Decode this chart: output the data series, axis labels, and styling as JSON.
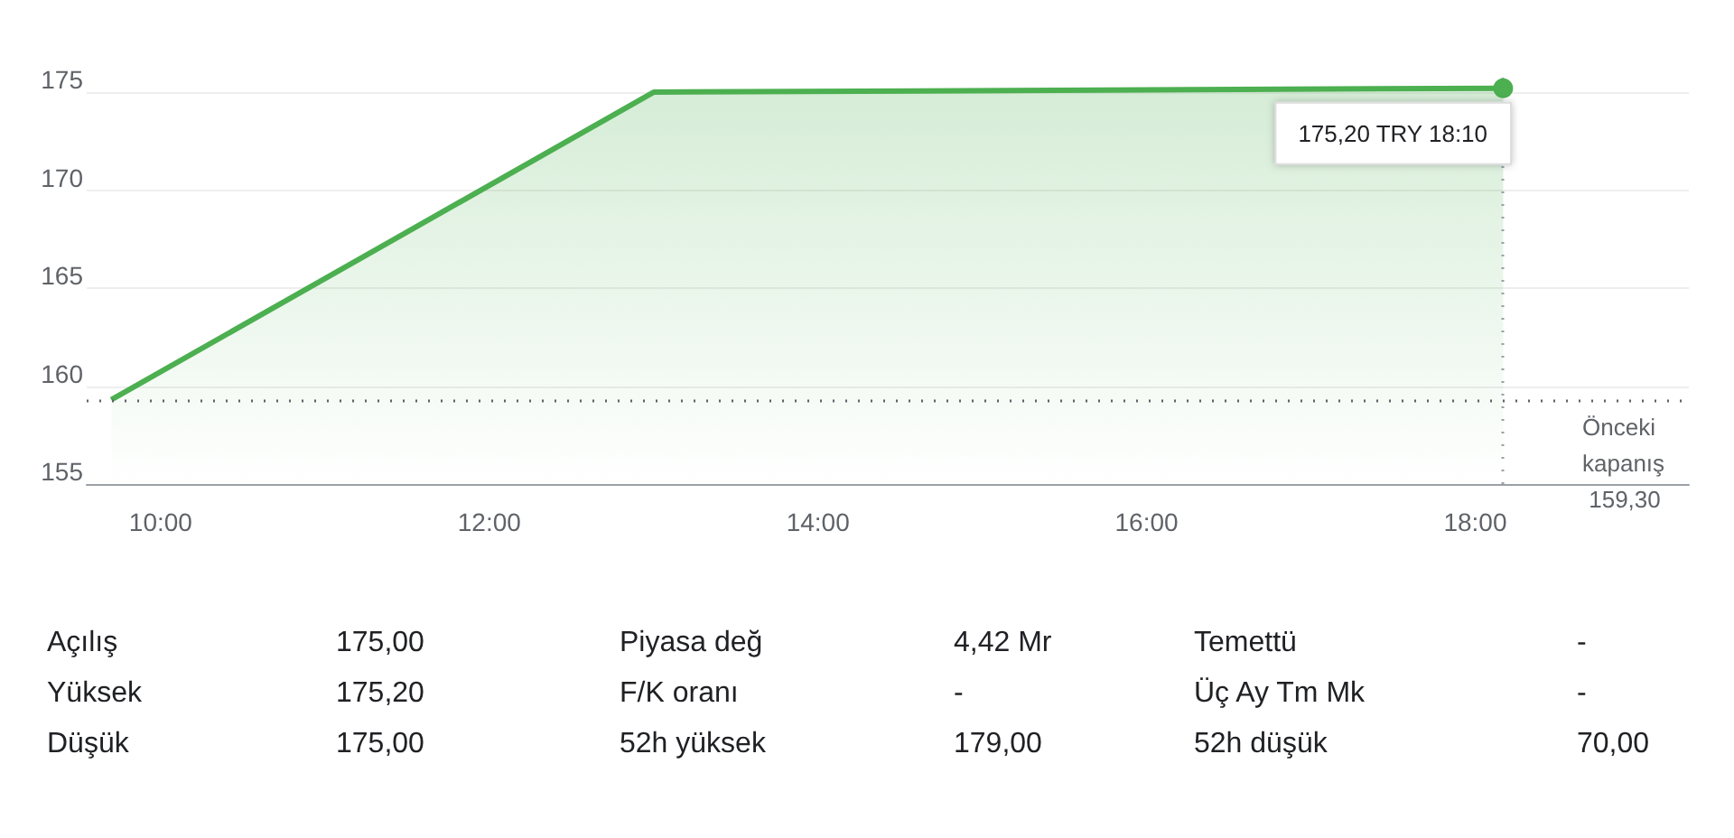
{
  "chart_data": {
    "type": "area",
    "x": [
      9.7,
      13,
      18.17
    ],
    "series": [
      {
        "color": "#4caf50",
        "values": [
          159.3,
          175,
          175.2
        ]
      }
    ],
    "xlim": [
      9.55,
      19.3
    ],
    "xticks": [
      {
        "value": 10,
        "label": "10:00"
      },
      {
        "value": 12,
        "label": "12:00"
      },
      {
        "value": 14,
        "label": "14:00"
      },
      {
        "value": 16,
        "label": "16:00"
      },
      {
        "value": 18,
        "label": "18:00"
      }
    ],
    "ylim": [
      155,
      176.2
    ],
    "yticks": [
      155,
      160,
      165,
      170,
      175
    ],
    "grid": "y",
    "ref_lines": [
      {
        "axis": "y",
        "value": 159.3,
        "label": "Önceki kapanış 159,30",
        "line_style": "dotted",
        "color": "#5f6368"
      },
      {
        "axis": "x",
        "value": 18.17,
        "line_style": "dotted",
        "color": "#9aa0a6"
      }
    ],
    "annotations": [
      {
        "text": "175,20 TRY 18:10",
        "x": 18.17,
        "y": 175.2
      },
      "Açılış",
      "175,00",
      "Piyasa değ",
      "4,42 Mr",
      "Temettü",
      "-",
      "Yüksek",
      "175,20",
      "F/K oranı",
      "-",
      "Üç Ay Tm Mk",
      "-",
      "Düşük",
      "175,00",
      "52h yüksek",
      "179,00",
      "52h düşük",
      "70,00"
    ]
  }
}
